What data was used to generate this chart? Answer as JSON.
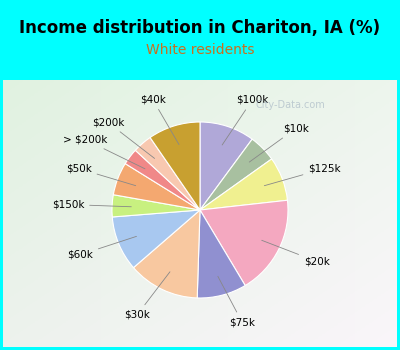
{
  "title": "Income distribution in Chariton, IA (%)",
  "subtitle": "White residents",
  "watermark": "© City-Data.com",
  "background_cyan": "#00FFFF",
  "segments": [
    {
      "label": "$100k",
      "value": 10.0,
      "color": "#b0a8d8"
    },
    {
      "label": "$10k",
      "value": 5.0,
      "color": "#a8c0a0"
    },
    {
      "label": "$125k",
      "value": 8.0,
      "color": "#f0f090"
    },
    {
      "label": "$20k",
      "value": 18.0,
      "color": "#f4a8c0"
    },
    {
      "label": "$75k",
      "value": 9.0,
      "color": "#9090d0"
    },
    {
      "label": "$30k",
      "value": 13.0,
      "color": "#f8c8a0"
    },
    {
      "label": "$60k",
      "value": 10.0,
      "color": "#a8c8f0"
    },
    {
      "label": "$150k",
      "value": 4.0,
      "color": "#c8f080"
    },
    {
      "label": "$50k",
      "value": 6.0,
      "color": "#f4a870"
    },
    {
      "label": "> $200k",
      "value": 3.0,
      "color": "#f08888"
    },
    {
      "label": "$200k",
      "value": 3.5,
      "color": "#f8c8b0"
    },
    {
      "label": "$40k",
      "value": 9.5,
      "color": "#c8a030"
    }
  ],
  "title_fontsize": 12,
  "subtitle_fontsize": 10,
  "label_fontsize": 7.5
}
